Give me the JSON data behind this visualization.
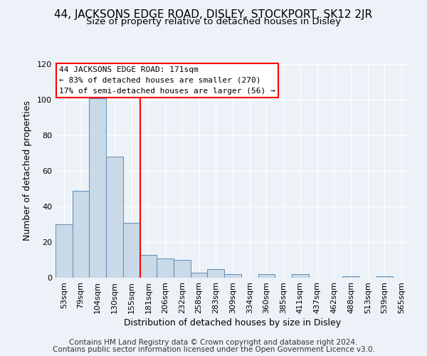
{
  "title": "44, JACKSONS EDGE ROAD, DISLEY, STOCKPORT, SK12 2JR",
  "subtitle": "Size of property relative to detached houses in Disley",
  "xlabel": "Distribution of detached houses by size in Disley",
  "ylabel": "Number of detached properties",
  "bar_labels": [
    "53sqm",
    "79sqm",
    "104sqm",
    "130sqm",
    "155sqm",
    "181sqm",
    "206sqm",
    "232sqm",
    "258sqm",
    "283sqm",
    "309sqm",
    "334sqm",
    "360sqm",
    "385sqm",
    "411sqm",
    "437sqm",
    "462sqm",
    "488sqm",
    "513sqm",
    "539sqm",
    "565sqm"
  ],
  "bar_values": [
    30,
    49,
    101,
    68,
    31,
    13,
    11,
    10,
    3,
    5,
    2,
    0,
    2,
    0,
    2,
    0,
    0,
    1,
    0,
    1,
    0
  ],
  "bar_color": "#c9d9e8",
  "bar_edgecolor": "#5b8db8",
  "vline_x": 5,
  "vline_color": "red",
  "ylim": [
    0,
    120
  ],
  "yticks": [
    0,
    20,
    40,
    60,
    80,
    100,
    120
  ],
  "annotation_lines": [
    "44 JACKSONS EDGE ROAD: 171sqm",
    "← 83% of detached houses are smaller (270)",
    "17% of semi-detached houses are larger (56) →"
  ],
  "annotation_box_color": "white",
  "annotation_box_edgecolor": "red",
  "footer_lines": [
    "Contains HM Land Registry data © Crown copyright and database right 2024.",
    "Contains public sector information licensed under the Open Government Licence v3.0."
  ],
  "bg_color": "#edf2f8",
  "plot_bg_color": "#edf2f8",
  "grid_color": "white",
  "title_fontsize": 11,
  "subtitle_fontsize": 9.5,
  "axis_label_fontsize": 9,
  "tick_fontsize": 8,
  "footer_fontsize": 7.5
}
